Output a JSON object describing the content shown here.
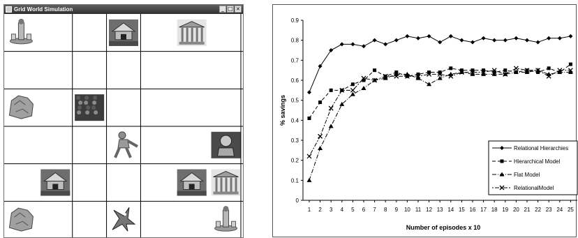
{
  "window": {
    "title": "Grid World Simulation",
    "buttons": {
      "minimize": "_",
      "maximize": "□",
      "close": "×"
    }
  },
  "grid": {
    "columns": 7,
    "rows": 6,
    "cells": [
      {
        "row": 0,
        "col": 0,
        "icon": "fountain-statue-icon"
      },
      {
        "row": 0,
        "col": 3,
        "icon": "ruined-temple-icon"
      },
      {
        "row": 0,
        "col": 5,
        "icon": "greek-temple-icon"
      },
      {
        "row": 2,
        "col": 0,
        "icon": "rock-boulder-icon"
      },
      {
        "row": 2,
        "col": 2,
        "icon": "rubble-debris-icon"
      },
      {
        "row": 3,
        "col": 3,
        "icon": "walking-agent-icon"
      },
      {
        "row": 3,
        "col": 6,
        "icon": "stone-idol-icon"
      },
      {
        "row": 4,
        "col": 1,
        "icon": "ruined-temple-icon"
      },
      {
        "row": 4,
        "col": 5,
        "icon": "ruined-temple-icon"
      },
      {
        "row": 4,
        "col": 6,
        "icon": "greek-temple-icon"
      },
      {
        "row": 5,
        "col": 0,
        "icon": "rock-boulder-icon"
      },
      {
        "row": 5,
        "col": 3,
        "icon": "dragon-monster-icon"
      },
      {
        "row": 5,
        "col": 6,
        "icon": "fountain-statue-icon"
      }
    ]
  },
  "chart_data": {
    "type": "line",
    "title": "",
    "xlabel": "Number of episodes x 10",
    "ylabel": "% savings",
    "ylim": [
      0,
      0.9
    ],
    "yticks": [
      "0",
      "0.1",
      "0.2",
      "0.3",
      "0.4",
      "0.5",
      "0.6",
      "0.7",
      "0.8",
      "0.9"
    ],
    "x": [
      1,
      2,
      3,
      4,
      5,
      6,
      7,
      8,
      9,
      10,
      11,
      12,
      13,
      14,
      15,
      16,
      17,
      18,
      19,
      20,
      21,
      22,
      23,
      24,
      25
    ],
    "xtick_labels": [
      "1",
      "2",
      "3",
      "4",
      "5",
      "6",
      "7",
      "8",
      "9",
      "10",
      "11",
      "12",
      "13",
      "14",
      "15",
      "16",
      "17",
      "18",
      "19",
      "20",
      "21",
      "22",
      "23",
      "24",
      "25"
    ],
    "grid": false,
    "legend_position": "bottom-right",
    "series": [
      {
        "name": "Relational Hierarchies",
        "marker": "diamond",
        "dash": "solid",
        "values": [
          0.54,
          0.67,
          0.75,
          0.78,
          0.78,
          0.77,
          0.8,
          0.78,
          0.8,
          0.82,
          0.81,
          0.82,
          0.79,
          0.82,
          0.8,
          0.79,
          0.81,
          0.8,
          0.8,
          0.81,
          0.8,
          0.79,
          0.81,
          0.81,
          0.82
        ]
      },
      {
        "name": "Hierarchical Model",
        "marker": "square",
        "dash": "dashed",
        "values": [
          0.41,
          0.49,
          0.55,
          0.55,
          0.58,
          0.6,
          0.65,
          0.62,
          0.64,
          0.62,
          0.63,
          0.64,
          0.64,
          0.66,
          0.65,
          0.65,
          0.65,
          0.64,
          0.65,
          0.64,
          0.65,
          0.64,
          0.66,
          0.64,
          0.68
        ]
      },
      {
        "name": "Flat Model",
        "marker": "triangle",
        "dash": "dashdot",
        "values": [
          0.1,
          0.26,
          0.37,
          0.48,
          0.53,
          0.56,
          0.6,
          0.61,
          0.63,
          0.63,
          0.61,
          0.58,
          0.61,
          0.63,
          0.64,
          0.63,
          0.63,
          0.63,
          0.63,
          0.64,
          0.64,
          0.65,
          0.63,
          0.64,
          0.64
        ]
      },
      {
        "name": "RelationalModel",
        "marker": "x",
        "dash": "dotdash",
        "values": [
          0.22,
          0.32,
          0.46,
          0.55,
          0.55,
          0.61,
          0.6,
          0.62,
          0.62,
          0.62,
          0.62,
          0.63,
          0.63,
          0.62,
          0.64,
          0.64,
          0.64,
          0.65,
          0.63,
          0.66,
          0.65,
          0.65,
          0.62,
          0.65,
          0.65
        ]
      }
    ]
  }
}
